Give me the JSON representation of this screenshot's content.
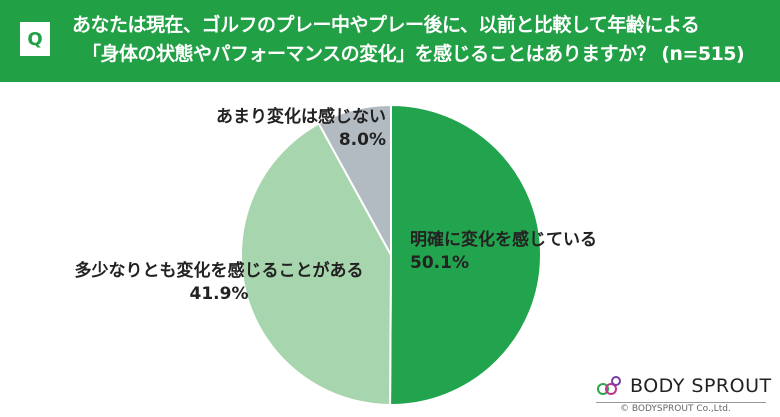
{
  "header": {
    "q_label": "Q",
    "line1": "あなたは現在、ゴルフのプレー中やプレー後に、以前と比較して年齢による",
    "line2": "「身体の状態やパフォーマンスの変化」を感じることはありますか？ (n=515)"
  },
  "chart_data": {
    "type": "pie",
    "title": "あなたは現在、ゴルフのプレー中やプレー後に、以前と比較して年齢による「身体の状態やパフォーマンスの変化」を感じることはありますか？ (n=515)",
    "slices": [
      {
        "label": "明確に変化を感じている",
        "value": 50.1,
        "value_label": "50.1%",
        "color": "#22a34d"
      },
      {
        "label": "多少なりとも変化を感じることがある",
        "value": 41.9,
        "value_label": "41.9%",
        "color": "#a7d5ad"
      },
      {
        "label": "あまり変化は感じない",
        "value": 8.0,
        "value_label": "8.0%",
        "color": "#b3bbc2"
      }
    ],
    "start": "top",
    "direction": "clockwise"
  },
  "logo": {
    "name": "BODY SPROUT",
    "copyright": "© BODYSPROUT Co.,Ltd."
  }
}
